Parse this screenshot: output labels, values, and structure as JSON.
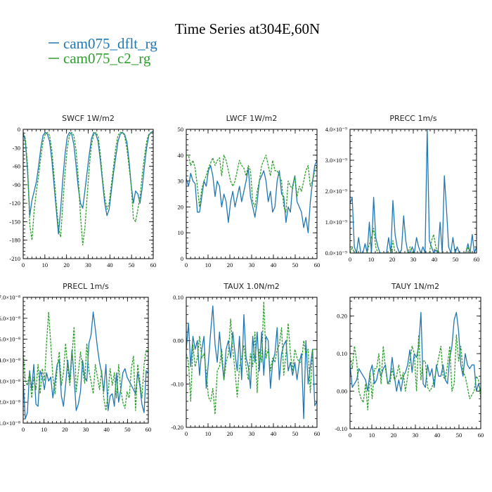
{
  "title": "Time Series at304E,60N",
  "legend": [
    {
      "label": "cam075_dflt_rg",
      "color": "#1f77b4"
    },
    {
      "label": "cam075_c2_rg",
      "color": "#2ca02c"
    }
  ],
  "chart_data": [
    {
      "type": "line",
      "title": "SWCF  1W/m2",
      "xlim": [
        0,
        60
      ],
      "ylim": [
        -210,
        0
      ],
      "xticks": [
        0,
        10,
        20,
        30,
        40,
        50,
        60
      ],
      "yticks": [
        0,
        -30,
        -60,
        -90,
        -120,
        -150,
        -180,
        -210
      ],
      "yticklabels": [
        "0",
        "-30",
        "-60",
        "-90",
        "-120",
        "-150",
        "-180",
        "-210"
      ],
      "series": [
        {
          "name": "cam075_dflt_rg",
          "color": "#1f77b4",
          "style": "solid",
          "values": [
            -5,
            -20,
            -70,
            -140,
            -115,
            -100,
            -85,
            -60,
            -30,
            -10,
            -5,
            -8,
            -20,
            -50,
            -90,
            -130,
            -170,
            -130,
            -80,
            -40,
            -12,
            -5,
            -8,
            -25,
            -60,
            -95,
            -120,
            -128,
            -100,
            -70,
            -40,
            -15,
            -5,
            -8,
            -20,
            -50,
            -85,
            -120,
            -140,
            -130,
            -100,
            -70,
            -45,
            -20,
            -8,
            -5,
            -8,
            -20,
            -50,
            -90,
            -120,
            -100,
            -105,
            -120,
            -95,
            -60,
            -30,
            -10,
            -5,
            -3
          ]
        },
        {
          "name": "cam075_c2_rg",
          "color": "#2ca02c",
          "style": "dashed",
          "values": [
            -8,
            -15,
            -60,
            -155,
            -180,
            -130,
            -100,
            -75,
            -45,
            -20,
            -8,
            -5,
            -10,
            -35,
            -75,
            -120,
            -160,
            -175,
            -120,
            -70,
            -30,
            -10,
            -5,
            -10,
            -35,
            -80,
            -140,
            -188,
            -160,
            -110,
            -60,
            -25,
            -8,
            -5,
            -12,
            -40,
            -80,
            -110,
            -130,
            -120,
            -90,
            -60,
            -30,
            -10,
            -5,
            -5,
            -10,
            -30,
            -60,
            -90,
            -145,
            -150,
            -130,
            -110,
            -75,
            -45,
            -20,
            -8,
            -5,
            -5
          ]
        }
      ]
    },
    {
      "type": "line",
      "title": "LWCF  1W/m2",
      "xlim": [
        0,
        60
      ],
      "ylim": [
        0,
        50
      ],
      "xticks": [
        0,
        10,
        20,
        30,
        40,
        50,
        60
      ],
      "yticks": [
        0,
        10,
        20,
        30,
        40,
        50
      ],
      "yticklabels": [
        "0",
        "10",
        "20",
        "30",
        "40",
        "50"
      ],
      "series": [
        {
          "name": "cam075_dflt_rg",
          "color": "#1f77b4",
          "style": "solid",
          "values": [
            31,
            28,
            33,
            30,
            29,
            18,
            18,
            24,
            30,
            28,
            34,
            36,
            32,
            24,
            30,
            28,
            20,
            25,
            22,
            14,
            22,
            26,
            20,
            24,
            28,
            22,
            26,
            30,
            35,
            24,
            20,
            16,
            22,
            30,
            32,
            34,
            30,
            22,
            26,
            18,
            20,
            30,
            34,
            25,
            24,
            14,
            20,
            18,
            28,
            32,
            22,
            20,
            18,
            12,
            16,
            10,
            22,
            30,
            36,
            38
          ]
        },
        {
          "name": "cam075_c2_rg",
          "color": "#2ca02c",
          "style": "dashed",
          "values": [
            40,
            40,
            36,
            38,
            35,
            28,
            20,
            27,
            30,
            32,
            35,
            37,
            39,
            36,
            38,
            39,
            32,
            40,
            38,
            34,
            30,
            28,
            30,
            34,
            38,
            36,
            35,
            32,
            36,
            34,
            22,
            20,
            26,
            30,
            36,
            38,
            40,
            36,
            32,
            38,
            34,
            34,
            32,
            30,
            20,
            18,
            30,
            28,
            27,
            32,
            24,
            28,
            26,
            30,
            34,
            36,
            28,
            30,
            34,
            36
          ]
        }
      ]
    },
    {
      "type": "line",
      "title": "PRECC  1m/s",
      "xlim": [
        0,
        60
      ],
      "ylim": [
        0,
        4e-09
      ],
      "xticks": [
        0,
        10,
        20,
        30,
        40,
        50,
        60
      ],
      "yticks": [
        0,
        1e-09,
        2e-09,
        3e-09,
        4e-09
      ],
      "yticklabels": [
        "0.0×10⁻⁹",
        "1.0×10⁻⁹",
        "2.0×10⁻⁹",
        "3.0×10⁻⁹",
        "4.0×10⁻⁹"
      ],
      "series": [
        {
          "name": "cam075_dflt_rg",
          "color": "#1f77b4",
          "style": "solid",
          "values": [
            1.6e-09,
            1.8e-09,
            2e-10,
            0,
            5e-10,
            0,
            0,
            3e-10,
            0,
            1e-09,
            0,
            1.8e-09,
            5e-10,
            2e-10,
            0,
            0,
            0,
            0,
            5e-10,
            0,
            1.7e-09,
            6e-10,
            2e-10,
            0,
            1e-10,
            1.2e-09,
            4e-10,
            0,
            0,
            2e-10,
            0,
            5e-10,
            2e-10,
            0,
            2e-10,
            0,
            4e-09,
            4e-10,
            2e-10,
            0,
            1e-10,
            0,
            1e-09,
            0,
            2.5e-09,
            1.4e-09,
            2e-10,
            0,
            5e-10,
            0,
            2e-10,
            0,
            0,
            0,
            0,
            3e-10,
            0,
            6e-10,
            0,
            2e-10
          ]
        },
        {
          "name": "cam075_c2_rg",
          "color": "#2ca02c",
          "style": "dashed",
          "values": [
            0,
            2e-10,
            0,
            0,
            0,
            0,
            0,
            0,
            0,
            3e-10,
            5e-10,
            8e-10,
            2e-10,
            0,
            0,
            0,
            0,
            0,
            0,
            0,
            4e-10,
            0,
            0,
            0,
            0,
            0,
            0,
            0,
            2e-10,
            0,
            0,
            0,
            0,
            0,
            0,
            0,
            0,
            0,
            4e-10,
            6e-10,
            2e-10,
            0,
            0,
            0,
            0,
            0,
            0,
            0,
            0,
            0,
            0,
            0,
            0,
            0,
            0,
            2e-10,
            0,
            0,
            0,
            0
          ]
        }
      ]
    },
    {
      "type": "line",
      "title": "PRECL  1m/s",
      "xlim": [
        0,
        60
      ],
      "ylim": [
        1e-08,
        7e-08
      ],
      "xticks": [
        0,
        10,
        20,
        30,
        40,
        50,
        60
      ],
      "yticks": [
        1e-08,
        2e-08,
        3e-08,
        4e-08,
        5e-08,
        6e-08,
        7e-08
      ],
      "yticklabels": [
        "1.0×10⁻⁸",
        "2.0×10⁻⁸",
        "3.0×10⁻⁸",
        "4.0×10⁻⁸",
        "5.0×10⁻⁸",
        "6.0×10⁻⁸",
        "7.0×10⁻⁸"
      ],
      "series": [
        {
          "name": "cam075_dflt_rg",
          "color": "#1f77b4",
          "style": "solid",
          "values": [
            3e-08,
            1.2e-08,
            1.5e-08,
            3.5e-08,
            2.6e-08,
            3.8e-08,
            1.9e-08,
            1.8e-08,
            3.5e-08,
            3.2e-08,
            2.6e-08,
            3.4e-08,
            3e-08,
            3.2e-08,
            2.2e-08,
            3e-08,
            3.8e-08,
            4e-08,
            2.3e-08,
            1.8e-08,
            2.8e-08,
            4e-08,
            3e-08,
            4.5e-08,
            3.2e-08,
            1.6e-08,
            1.9e-08,
            2.5e-08,
            4e-08,
            3.2e-08,
            3e-08,
            4.8e-08,
            5.2e-08,
            6.3e-08,
            5.5e-08,
            4.6e-08,
            3.9e-08,
            3.4e-08,
            2.5e-08,
            3.8e-08,
            1.6e-08,
            2.3e-08,
            2.4e-08,
            1.8e-08,
            3.4e-08,
            2e-08,
            2.6e-08,
            3.4e-08,
            3.6e-08,
            3.2e-08,
            3e-08,
            2.8e-08,
            2.6e-08,
            2.4e-08,
            3.4e-08,
            2.8e-08,
            1.9e-08,
            1.5e-08,
            3.5e-08,
            3.4e-08
          ]
        },
        {
          "name": "cam075_c2_rg",
          "color": "#2ca02c",
          "style": "dashed",
          "values": [
            4.4e-08,
            3e-08,
            2.8e-08,
            3.4e-08,
            2.2e-08,
            3.2e-08,
            2.6e-08,
            3.8e-08,
            2.4e-08,
            3.6e-08,
            3e-08,
            4.8e-08,
            6.3e-08,
            4.8e-08,
            3.2e-08,
            2.4e-08,
            3.6e-08,
            4.4e-08,
            2.8e-08,
            3.4e-08,
            4.8e-08,
            3.6e-08,
            2.8e-08,
            4.2e-08,
            5.6e-08,
            2.5e-08,
            3.4e-08,
            4.4e-08,
            3.6e-08,
            2.9e-08,
            4.8e-08,
            3.5e-08,
            3e-08,
            2.4e-08,
            3.8e-08,
            3.2e-08,
            2.6e-08,
            3.5e-08,
            2.2e-08,
            1.6e-08,
            2.4e-08,
            3.6e-08,
            2.8e-08,
            3.4e-08,
            2.2e-08,
            3.8e-08,
            2.6e-08,
            2e-08,
            1.7e-08,
            2.5e-08,
            2.2e-08,
            3.6e-08,
            4.2e-08,
            1.6e-08,
            3.8e-08,
            3e-08,
            2.2e-08,
            3.8e-08,
            4.5e-08,
            4.4e-08
          ]
        }
      ]
    },
    {
      "type": "line",
      "title": "TAUX  1.0N/m2",
      "xlim": [
        0,
        60
      ],
      "ylim": [
        -0.2,
        0.1
      ],
      "xticks": [
        0,
        10,
        20,
        30,
        40,
        50,
        60
      ],
      "yticks": [
        -0.2,
        -0.1,
        0.0,
        0.1
      ],
      "yticklabels": [
        "-0.20",
        "-0.10",
        "0.00",
        "0.10"
      ],
      "series": [
        {
          "name": "cam075_dflt_rg",
          "color": "#1f77b4",
          "style": "solid",
          "values": [
            -0.02,
            0.04,
            -0.06,
            0.01,
            -0.02,
            0.0,
            -0.08,
            -0.02,
            0.01,
            -0.11,
            -0.05,
            0.02,
            0.08,
            -0.01,
            -0.05,
            0.02,
            -0.04,
            -0.09,
            -0.02,
            0.0,
            -0.04,
            0.02,
            -0.03,
            -0.07,
            0.01,
            -0.09,
            0.06,
            -0.04,
            -0.06,
            -0.11,
            0.01,
            -0.05,
            0.02,
            -0.07,
            0.02,
            -0.08,
            0.01,
            0.0,
            -0.11,
            -0.05,
            -0.03,
            0.03,
            -0.09,
            -0.03,
            -0.01,
            0.0,
            -0.07,
            -0.05,
            -0.08,
            -0.05,
            -0.09,
            -0.05,
            -0.03,
            -0.18,
            0.0,
            -0.1,
            -0.06,
            -0.02,
            -0.15,
            -0.14
          ]
        },
        {
          "name": "cam075_c2_rg",
          "color": "#2ca02c",
          "style": "dashed",
          "values": [
            -0.03,
            -0.05,
            -0.14,
            -0.01,
            -0.06,
            -0.04,
            0.01,
            -0.04,
            -0.03,
            -0.07,
            -0.13,
            -0.14,
            -0.11,
            -0.17,
            -0.07,
            -0.06,
            -0.02,
            -0.09,
            -0.05,
            -0.03,
            0.05,
            -0.02,
            -0.07,
            -0.13,
            -0.06,
            -0.04,
            -0.01,
            -0.06,
            -0.09,
            -0.03,
            -0.06,
            0.02,
            -0.12,
            -0.02,
            -0.05,
            0.09,
            -0.04,
            -0.02,
            -0.07,
            -0.04,
            -0.05,
            -0.02,
            -0.01,
            0.03,
            -0.08,
            -0.03,
            0.04,
            -0.03,
            -0.07,
            -0.02,
            -0.04,
            -0.05,
            -0.05,
            0.0,
            -0.03,
            -0.02,
            -0.12,
            -0.02,
            -0.02,
            -0.02
          ]
        }
      ]
    },
    {
      "type": "line",
      "title": "TAUY  1N/m2",
      "xlim": [
        0,
        60
      ],
      "ylim": [
        -0.1,
        0.25
      ],
      "xticks": [
        0,
        10,
        20,
        30,
        40,
        50,
        60
      ],
      "yticks": [
        -0.1,
        0.0,
        0.1,
        0.2
      ],
      "yticklabels": [
        "-0.10",
        "0.00",
        "0.10",
        "0.20"
      ],
      "series": [
        {
          "name": "cam075_dflt_rg",
          "color": "#1f77b4",
          "style": "solid",
          "values": [
            0.07,
            0.01,
            0.02,
            0.03,
            0.06,
            0.05,
            0.04,
            0.03,
            0.0,
            0.05,
            0.07,
            0.02,
            0.03,
            0.06,
            0.04,
            0.06,
            0.07,
            0.02,
            0.03,
            0.09,
            0.04,
            0.0,
            0.03,
            0.0,
            0.04,
            0.05,
            0.07,
            0.11,
            0.05,
            0.1,
            0.09,
            0.12,
            0.21,
            0.02,
            0.01,
            0.07,
            0.04,
            0.06,
            0.01,
            0.07,
            0.04,
            0.04,
            0.07,
            0.03,
            0.02,
            0.09,
            0.12,
            0.19,
            0.21,
            0.16,
            0.07,
            0.04,
            0.1,
            0.07,
            0.06,
            0.07,
            0.07,
            0.0,
            0.02,
            0.0
          ]
        },
        {
          "name": "cam075_c2_rg",
          "color": "#2ca02c",
          "style": "dashed",
          "values": [
            0.09,
            0.06,
            0.12,
            0.08,
            0.0,
            -0.02,
            -0.03,
            0.02,
            -0.05,
            0.05,
            -0.02,
            0.06,
            0.06,
            0.1,
            0.02,
            0.12,
            0.06,
            0.02,
            0.02,
            0.06,
            0.03,
            0.04,
            0.07,
            0.03,
            0.05,
            0.0,
            0.04,
            0.08,
            0.12,
            0.1,
            0.0,
            0.15,
            0.03,
            0.08,
            0.08,
            0.01,
            0.0,
            0.01,
            0.03,
            0.06,
            0.09,
            0.12,
            0.04,
            0.03,
            0.07,
            0.12,
            0.0,
            0.02,
            0.15,
            0.08,
            0.12,
            0.05,
            0.04,
            0.01,
            -0.02,
            -0.01,
            0.0,
            0.04,
            0.03,
            -0.02
          ]
        }
      ]
    }
  ]
}
